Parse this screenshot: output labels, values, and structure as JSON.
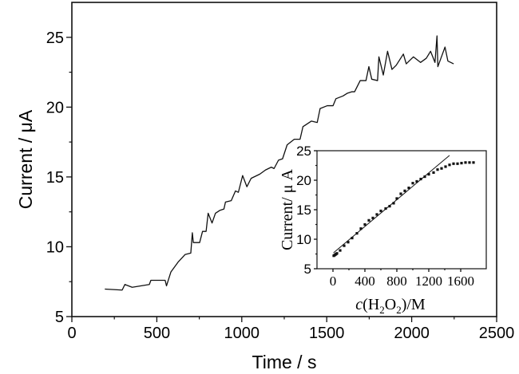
{
  "chart_data": [
    {
      "type": "line",
      "xlabel": "Time / s",
      "ylabel": "Current / μA",
      "xlim": [
        0,
        2500
      ],
      "ylim": [
        5,
        27.5
      ],
      "xticks": [
        "0",
        "500",
        "1000",
        "1500",
        "2000",
        "2500"
      ],
      "yticks": [
        "5",
        "10",
        "15",
        "20",
        "25"
      ],
      "grid": false,
      "color": "#111111",
      "x": [
        194,
        296,
        312,
        355,
        456,
        465,
        549,
        557,
        583,
        625,
        667,
        700,
        709,
        715,
        752,
        769,
        790,
        802,
        825,
        845,
        870,
        895,
        904,
        938,
        963,
        980,
        1005,
        1030,
        1055,
        1106,
        1140,
        1174,
        1190,
        1216,
        1240,
        1267,
        1309,
        1343,
        1360,
        1410,
        1444,
        1461,
        1503,
        1537,
        1554,
        1596,
        1622,
        1647,
        1664,
        1697,
        1731,
        1748,
        1765,
        1799,
        1807,
        1833,
        1858,
        1884,
        1909,
        1951,
        1968,
        2010,
        2052,
        2086,
        2111,
        2137,
        2149,
        2154,
        2196,
        2213,
        2247
      ],
      "y": [
        6.97,
        6.9,
        7.3,
        7.1,
        7.3,
        7.6,
        7.6,
        7.2,
        8.2,
        8.9,
        9.45,
        9.55,
        11.0,
        10.3,
        10.3,
        11.1,
        11.1,
        12.4,
        11.7,
        12.4,
        12.6,
        12.7,
        13.2,
        13.3,
        14.0,
        13.9,
        15.1,
        14.3,
        14.9,
        15.2,
        15.5,
        15.7,
        15.6,
        16.2,
        16.3,
        17.3,
        17.7,
        17.7,
        18.6,
        19.0,
        18.9,
        19.9,
        20.1,
        20.1,
        20.6,
        20.8,
        21.0,
        21.1,
        21.1,
        21.9,
        21.9,
        22.9,
        22.0,
        21.9,
        23.6,
        22.3,
        24.0,
        22.7,
        23.0,
        23.8,
        23.1,
        23.6,
        23.2,
        23.5,
        24.0,
        23.2,
        25.1,
        22.9,
        24.3,
        23.3,
        23.1
      ]
    },
    {
      "type": "scatter",
      "xlabel": "c(H2O2)/M",
      "ylabel": "Current/ μ A",
      "xlim": [
        -200,
        1920
      ],
      "ylim": [
        5,
        25
      ],
      "xticks": [
        "0",
        "400",
        "800",
        "1200",
        "1600"
      ],
      "yticks": [
        "5",
        "10",
        "15",
        "20",
        "25"
      ],
      "grid": false,
      "legend": "none",
      "placement": "inset bottom-right",
      "x": [
        10,
        20,
        30,
        40,
        50,
        90,
        140,
        190,
        240,
        300,
        350,
        400,
        450,
        500,
        550,
        600,
        660,
        710,
        760,
        800,
        850,
        900,
        950,
        1000,
        1050,
        1100,
        1150,
        1200,
        1260,
        1310,
        1360,
        1410,
        1460,
        1510,
        1560,
        1610,
        1660,
        1710,
        1760
      ],
      "y": [
        7.2,
        7.3,
        7.4,
        7.5,
        7.6,
        8.1,
        8.9,
        9.5,
        10.2,
        11.0,
        11.8,
        12.5,
        13.2,
        13.6,
        14.2,
        14.8,
        15.2,
        15.6,
        16.1,
        16.9,
        17.7,
        18.2,
        18.7,
        19.5,
        19.8,
        20.2,
        20.6,
        21.0,
        21.3,
        21.8,
        22.0,
        22.3,
        22.6,
        22.8,
        22.8,
        22.9,
        23.0,
        23.0,
        23.0
      ],
      "fit_line": {
        "x": [
          7,
          1460
        ],
        "y": [
          7.7,
          24.2
        ]
      }
    }
  ]
}
